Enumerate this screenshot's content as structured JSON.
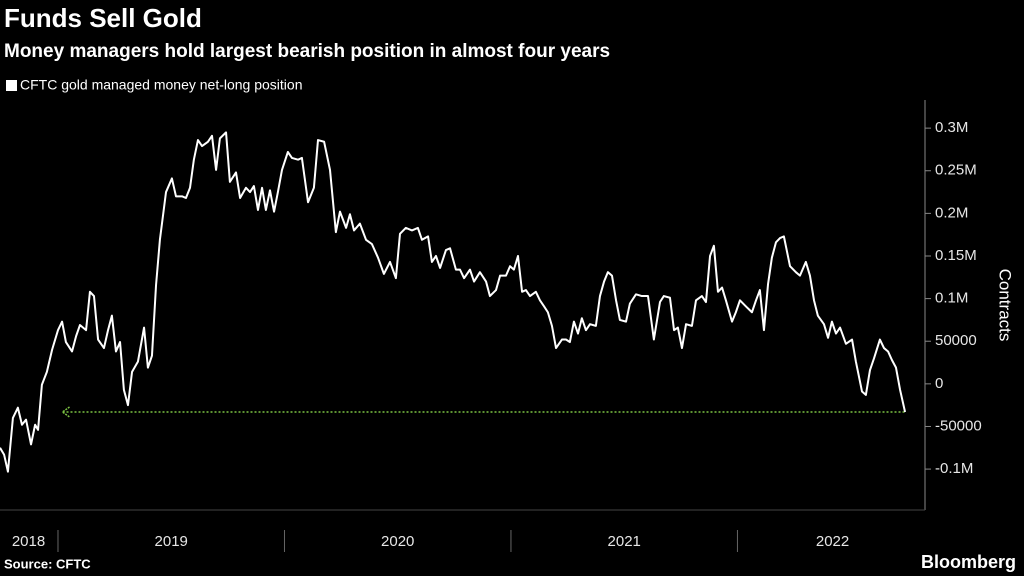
{
  "chart_data": {
    "type": "line",
    "title": "Funds Sell Gold",
    "subtitle": "Money managers hold largest bearish position in almost four years",
    "y_axis_label": "Contracts",
    "source": "Source: CFTC",
    "brand": "Bloomberg",
    "background": "#000000",
    "xlim": [
      2018.744,
      2022.806
    ],
    "xticks": [
      {
        "value": 2018.87,
        "label": "2018"
      },
      {
        "value": 2019.5,
        "label": "2019"
      },
      {
        "value": 2020.5,
        "label": "2020"
      },
      {
        "value": 2021.5,
        "label": "2021"
      },
      {
        "value": 2022.42,
        "label": "2022"
      }
    ],
    "ylim": [
      -148000,
      333000
    ],
    "yticks": [
      {
        "value": -100000,
        "label": "-0.1M"
      },
      -50000,
      0,
      50000,
      {
        "value": 100000,
        "label": "0.1M"
      },
      {
        "value": 150000,
        "label": "0.15M"
      },
      {
        "value": 200000,
        "label": "0.2M"
      },
      {
        "value": 250000,
        "label": "0.25M"
      },
      {
        "value": 300000,
        "label": "0.3M"
      }
    ],
    "grid": false,
    "reference_line": {
      "value": -33000,
      "x": [
        2019.02,
        2022.74
      ],
      "color": "#7ac143"
    },
    "x": [
      2018.744,
      2018.762,
      2018.779,
      2018.801,
      2018.823,
      2018.841,
      2018.859,
      2018.881,
      2018.899,
      2018.912,
      2018.929,
      2018.951,
      2018.974,
      2019.0,
      2019.018,
      2019.035,
      2019.062,
      2019.08,
      2019.097,
      2019.124,
      2019.141,
      2019.159,
      2019.177,
      2019.203,
      2019.221,
      2019.238,
      2019.256,
      2019.274,
      2019.291,
      2019.309,
      2019.327,
      2019.353,
      2019.38,
      2019.397,
      2019.415,
      2019.433,
      2019.45,
      2019.477,
      2019.503,
      2019.521,
      2019.548,
      2019.565,
      2019.583,
      2019.6,
      2019.618,
      2019.636,
      2019.662,
      2019.68,
      2019.698,
      2019.715,
      2019.742,
      2019.759,
      2019.786,
      2019.804,
      2019.83,
      2019.848,
      2019.865,
      2019.883,
      2019.901,
      2019.918,
      2019.936,
      2019.954,
      2019.971,
      2019.989,
      2020.015,
      2020.033,
      2020.06,
      2020.077,
      2020.104,
      2020.13,
      2020.148,
      2020.175,
      2020.201,
      2020.227,
      2020.245,
      2020.272,
      2020.289,
      2020.307,
      2020.333,
      2020.36,
      2020.386,
      2020.413,
      2020.439,
      2020.466,
      2020.492,
      2020.51,
      2020.536,
      2020.563,
      2020.589,
      2020.607,
      2020.634,
      2020.651,
      2020.669,
      2020.687,
      2020.713,
      2020.731,
      2020.757,
      2020.775,
      2020.793,
      2020.819,
      2020.837,
      2020.863,
      2020.89,
      2020.907,
      2020.934,
      2020.952,
      2020.978,
      2020.996,
      2021.013,
      2021.031,
      2021.049,
      2021.066,
      2021.084,
      2021.11,
      2021.128,
      2021.146,
      2021.163,
      2021.181,
      2021.199,
      2021.225,
      2021.243,
      2021.26,
      2021.278,
      2021.296,
      2021.313,
      2021.331,
      2021.349,
      2021.375,
      2021.393,
      2021.411,
      2021.428,
      2021.446,
      2021.464,
      2021.481,
      2021.508,
      2021.525,
      2021.552,
      2021.578,
      2021.605,
      2021.631,
      2021.658,
      2021.675,
      2021.702,
      2021.72,
      2021.737,
      2021.755,
      2021.773,
      2021.799,
      2021.817,
      2021.843,
      2021.861,
      2021.879,
      2021.896,
      2021.914,
      2021.932,
      2021.949,
      2021.976,
      2021.993,
      2022.011,
      2022.037,
      2022.064,
      2022.082,
      2022.099,
      2022.117,
      2022.135,
      2022.152,
      2022.17,
      2022.188,
      2022.205,
      2022.232,
      2022.258,
      2022.276,
      2022.302,
      2022.32,
      2022.338,
      2022.355,
      2022.382,
      2022.4,
      2022.417,
      2022.435,
      2022.453,
      2022.479,
      2022.506,
      2022.523,
      2022.55,
      2022.567,
      2022.585,
      2022.603,
      2022.629,
      2022.647,
      2022.665,
      2022.682,
      2022.7,
      2022.718,
      2022.74
    ],
    "series": [
      {
        "name": "CFTC gold managed money net-long position",
        "color": "#ffffff",
        "values": [
          -75000,
          -83000,
          -103000,
          -40000,
          -28000,
          -48000,
          -42000,
          -71000,
          -48000,
          -54000,
          -1000,
          14000,
          40000,
          63000,
          73000,
          49000,
          38000,
          56000,
          69000,
          63000,
          108000,
          103000,
          52000,
          42000,
          63000,
          80000,
          38000,
          49000,
          -7000,
          -25000,
          14000,
          26000,
          66000,
          19000,
          33000,
          116000,
          169000,
          225000,
          241000,
          220000,
          220000,
          218000,
          230000,
          263000,
          286000,
          279000,
          284000,
          291000,
          251000,
          288000,
          295000,
          237000,
          248000,
          218000,
          230000,
          225000,
          232000,
          204000,
          230000,
          204000,
          227000,
          202000,
          225000,
          251000,
          272000,
          265000,
          263000,
          265000,
          213000,
          230000,
          286000,
          284000,
          251000,
          178000,
          202000,
          183000,
          199000,
          180000,
          188000,
          169000,
          164000,
          148000,
          129000,
          143000,
          124000,
          176000,
          183000,
          180000,
          183000,
          169000,
          173000,
          143000,
          150000,
          136000,
          157000,
          159000,
          134000,
          134000,
          124000,
          134000,
          120000,
          131000,
          120000,
          103000,
          110000,
          127000,
          127000,
          138000,
          134000,
          150000,
          108000,
          110000,
          103000,
          108000,
          98000,
          91000,
          84000,
          68000,
          42000,
          52000,
          52000,
          49000,
          73000,
          59000,
          77000,
          63000,
          70000,
          68000,
          103000,
          120000,
          131000,
          127000,
          98000,
          75000,
          73000,
          94000,
          105000,
          103000,
          103000,
          52000,
          96000,
          103000,
          101000,
          63000,
          66000,
          42000,
          70000,
          68000,
          98000,
          103000,
          96000,
          150000,
          162000,
          108000,
          113000,
          98000,
          73000,
          84000,
          98000,
          91000,
          84000,
          98000,
          110000,
          63000,
          117000,
          148000,
          166000,
          171000,
          173000,
          138000,
          131000,
          127000,
          143000,
          127000,
          98000,
          80000,
          70000,
          54000,
          73000,
          59000,
          66000,
          47000,
          52000,
          26000,
          -9000,
          -13000,
          16000,
          30000,
          52000,
          42000,
          38000,
          28000,
          19000,
          -7000,
          -33000
        ]
      }
    ]
  }
}
